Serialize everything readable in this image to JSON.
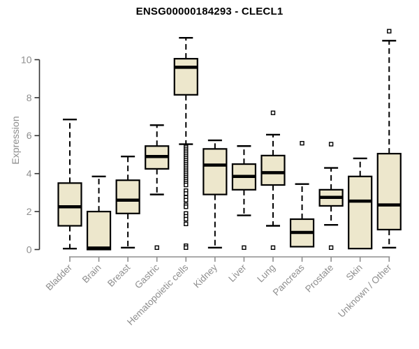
{
  "chart_data": {
    "type": "boxplot",
    "title": "ENSG00000184293 - CLECL1",
    "ylabel": "Expression",
    "yticks": [
      0,
      2,
      4,
      6,
      8,
      10
    ],
    "ylim": [
      0,
      11.65
    ],
    "grid": false,
    "legend": "none",
    "categories": [
      "Bladder",
      "Brain",
      "Breast",
      "Gastric",
      "Hematopoietic cells",
      "Kidney",
      "Liver",
      "Lung",
      "Pancreas",
      "Prostate",
      "Skin",
      "Unknown / Other"
    ],
    "boxes": [
      {
        "label": "Bladder",
        "whisker_low": 0.05,
        "q1": 1.25,
        "median": 2.25,
        "q3": 3.5,
        "whisker_high": 6.85,
        "outliers": []
      },
      {
        "label": "Brain",
        "whisker_low": 0.0,
        "q1": 0.0,
        "median": 0.08,
        "q3": 2.0,
        "whisker_high": 3.85,
        "outliers": []
      },
      {
        "label": "Breast",
        "whisker_low": 0.1,
        "q1": 1.9,
        "median": 2.6,
        "q3": 3.65,
        "whisker_high": 4.9,
        "outliers": []
      },
      {
        "label": "Gastric",
        "whisker_low": 2.9,
        "q1": 4.25,
        "median": 4.9,
        "q3": 5.45,
        "whisker_high": 6.55,
        "outliers": [
          0.1
        ]
      },
      {
        "label": "Hematopoietic cells",
        "whisker_low": 5.55,
        "q1": 8.15,
        "median": 9.6,
        "q3": 10.05,
        "whisker_high": 11.15,
        "outliers": [
          5.4,
          5.3,
          5.2,
          5.1,
          5.0,
          4.9,
          4.8,
          4.7,
          4.6,
          4.5,
          4.4,
          4.3,
          4.2,
          4.1,
          4.0,
          3.9,
          3.8,
          3.7,
          3.6,
          3.5,
          3.4,
          3.1,
          2.95,
          2.75,
          2.6,
          2.35,
          2.25,
          1.9,
          1.75,
          1.6,
          1.35,
          0.2,
          0.1
        ]
      },
      {
        "label": "Kidney",
        "whisker_low": 0.1,
        "q1": 2.9,
        "median": 4.45,
        "q3": 5.3,
        "whisker_high": 5.75,
        "outliers": []
      },
      {
        "label": "Liver",
        "whisker_low": 1.8,
        "q1": 3.15,
        "median": 3.85,
        "q3": 4.5,
        "whisker_high": 5.45,
        "outliers": [
          0.1
        ]
      },
      {
        "label": "Lung",
        "whisker_low": 1.25,
        "q1": 3.4,
        "median": 4.05,
        "q3": 4.95,
        "whisker_high": 6.05,
        "outliers": [
          7.2,
          0.1
        ]
      },
      {
        "label": "Pancreas",
        "whisker_low": 0.15,
        "q1": 0.15,
        "median": 0.9,
        "q3": 1.6,
        "whisker_high": 3.45,
        "outliers": [
          5.6
        ]
      },
      {
        "label": "Prostate",
        "whisker_low": 1.3,
        "q1": 2.3,
        "median": 2.75,
        "q3": 3.15,
        "whisker_high": 4.3,
        "outliers": [
          5.55,
          0.1
        ]
      },
      {
        "label": "Skin",
        "whisker_low": 0.05,
        "q1": 0.05,
        "median": 2.55,
        "q3": 3.85,
        "whisker_high": 4.8,
        "outliers": []
      },
      {
        "label": "Unknown / Other",
        "whisker_low": 0.1,
        "q1": 1.05,
        "median": 2.35,
        "q3": 5.05,
        "whisker_high": 11.0,
        "outliers": [
          11.5
        ]
      }
    ],
    "colors": {
      "box_fill": "#ede7cc",
      "box_stroke": "#000000",
      "median": "#000000",
      "whisker": "#000000",
      "outlier_stroke": "#000000",
      "outlier_fill": "#ffffff",
      "axis_y": "#333333",
      "axis_x": "#8e8e8e",
      "tick_label": "#8e8e8e",
      "title": "#000000",
      "background": "#ffffff"
    }
  }
}
